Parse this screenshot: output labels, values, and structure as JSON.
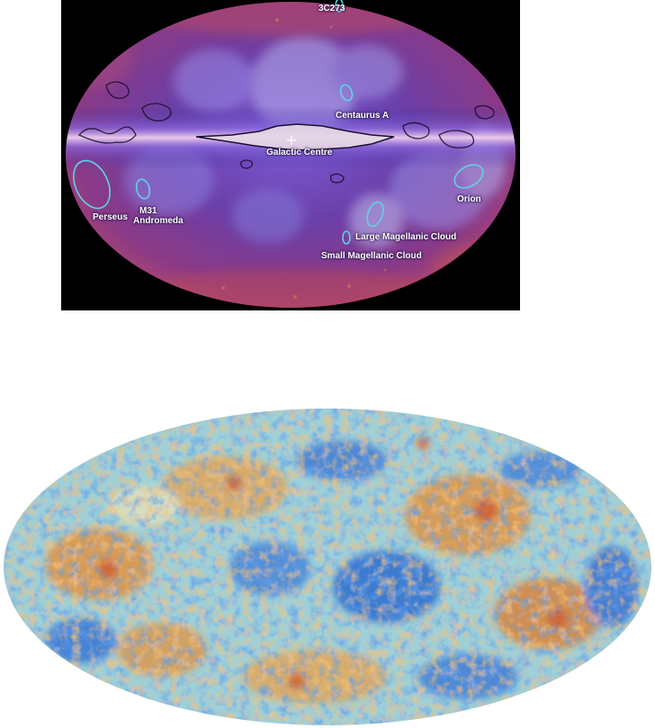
{
  "top_map": {
    "labels": {
      "c3c273": "3C273",
      "centaurus": "Centaurus A",
      "galactic_centre": "Galactic Centre",
      "m31": "M31",
      "andromeda": "Andromeda",
      "perseus": "Perseus",
      "lmc": "Large Magellanic Cloud",
      "smc": "Small Magellanic Cloud",
      "orion": "Orion"
    },
    "colors": {
      "sky_base": "#6a3fa8",
      "sky_edge": "#b5486e",
      "galactic_band": "#e6c8e6",
      "marker": "#5fd3e6"
    }
  },
  "bottom_map": {
    "colors": {
      "base": "#9fd0d8",
      "cold": "#1f5fd0",
      "warm": "#e88a2e",
      "hot": "#c83a16",
      "pale": "#e9e2b8"
    }
  }
}
